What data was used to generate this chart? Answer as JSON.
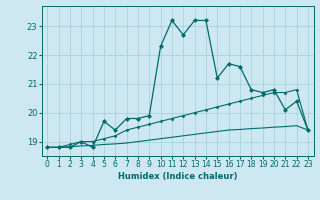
{
  "xlabel": "Humidex (Indice chaleur)",
  "bg_color": "#cde8f0",
  "grid_color": "#9ecfdb",
  "line_color": "#006b6b",
  "x_values": [
    0,
    1,
    2,
    3,
    4,
    5,
    6,
    7,
    8,
    9,
    10,
    11,
    12,
    13,
    14,
    15,
    16,
    17,
    18,
    19,
    20,
    21,
    22,
    23
  ],
  "line1": [
    18.8,
    18.8,
    18.8,
    19.0,
    18.8,
    19.7,
    19.4,
    19.8,
    19.8,
    19.9,
    22.3,
    23.2,
    22.7,
    23.2,
    23.2,
    21.2,
    21.7,
    21.6,
    20.8,
    20.7,
    20.8,
    20.1,
    20.4,
    19.4
  ],
  "line2": [
    18.8,
    18.8,
    18.9,
    19.0,
    19.0,
    19.1,
    19.2,
    19.4,
    19.5,
    19.6,
    19.7,
    19.8,
    19.9,
    20.0,
    20.1,
    20.2,
    20.3,
    20.4,
    20.5,
    20.6,
    20.7,
    20.7,
    20.8,
    19.4
  ],
  "line3": [
    18.8,
    18.8,
    18.82,
    18.85,
    18.87,
    18.9,
    18.92,
    18.95,
    19.0,
    19.05,
    19.1,
    19.15,
    19.2,
    19.25,
    19.3,
    19.35,
    19.4,
    19.42,
    19.45,
    19.47,
    19.5,
    19.52,
    19.55,
    19.4
  ],
  "ylim": [
    18.5,
    23.7
  ],
  "yticks": [
    19,
    20,
    21,
    22,
    23
  ],
  "xlim": [
    -0.5,
    23.5
  ],
  "xlabel_fontsize": 6,
  "tick_fontsize": 5.5
}
